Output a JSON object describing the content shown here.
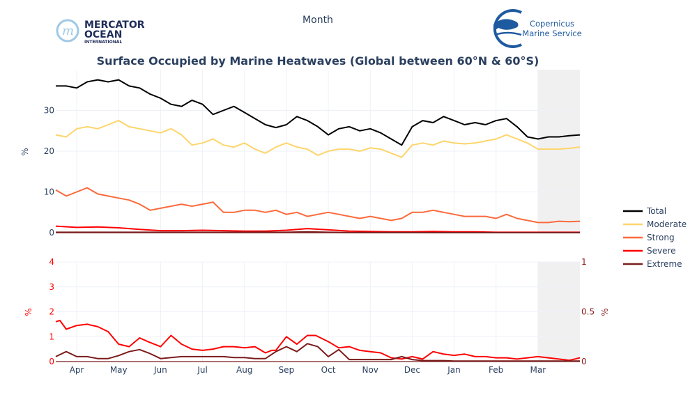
{
  "header": {
    "top_label": "Month",
    "left_logo": {
      "name": "MERCATOR",
      "line2": "OCEAN",
      "line3": "INTERNATIONAL",
      "color": "#1f2d5a",
      "mark_color": "#9fc9e6"
    },
    "right_logo": {
      "line1": "Copernicus",
      "line2": "Marine Service",
      "color": "#1e5aa0"
    }
  },
  "chart_data": {
    "type": "line",
    "title": "Surface Occupied by Marine Heatwaves (Global between 60°N & 60°S)",
    "xlabel": "",
    "x_tick_labels": [
      "Apr",
      "May",
      "Jun",
      "Jul",
      "Aug",
      "Sep",
      "Oct",
      "Nov",
      "Dec",
      "Jan",
      "Feb",
      "Mar"
    ],
    "x_range_months": [
      0,
      12.5
    ],
    "forecast_shade_start_month": 11.5,
    "grid": true,
    "legend_position": "right",
    "top_panel": {
      "ylabel": "%",
      "ylim": [
        0,
        40
      ],
      "yticks": [
        0,
        10,
        20,
        30
      ],
      "series": [
        {
          "name": "Total",
          "color": "#000000",
          "x": [
            0,
            0.25,
            0.5,
            0.75,
            1,
            1.25,
            1.5,
            1.75,
            2,
            2.25,
            2.5,
            2.75,
            3,
            3.25,
            3.5,
            3.75,
            4,
            4.25,
            4.5,
            4.75,
            5,
            5.25,
            5.5,
            5.75,
            6,
            6.25,
            6.5,
            6.75,
            7,
            7.25,
            7.5,
            7.75,
            8,
            8.25,
            8.5,
            8.75,
            9,
            9.25,
            9.5,
            9.75,
            10,
            10.25,
            10.5,
            10.75,
            11,
            11.25,
            11.5,
            11.75,
            12,
            12.25,
            12.5
          ],
          "values": [
            36,
            36,
            35.5,
            37,
            37.5,
            37,
            37.5,
            36,
            35.5,
            34,
            33,
            31.5,
            31,
            32.5,
            31.5,
            29,
            30,
            31,
            29.5,
            28,
            26.5,
            25.8,
            26.5,
            28.5,
            27.5,
            26,
            24,
            25.5,
            26,
            25,
            25.5,
            24.5,
            23,
            21.5,
            26,
            27.5,
            27,
            28.5,
            27.5,
            26.5,
            27,
            26.5,
            27.5,
            28,
            26,
            23.5,
            23,
            23.5,
            23.5,
            23.8,
            24
          ]
        },
        {
          "name": "Moderate",
          "color": "#fdd56a",
          "x": [
            0,
            0.25,
            0.5,
            0.75,
            1,
            1.25,
            1.5,
            1.75,
            2,
            2.25,
            2.5,
            2.75,
            3,
            3.25,
            3.5,
            3.75,
            4,
            4.25,
            4.5,
            4.75,
            5,
            5.25,
            5.5,
            5.75,
            6,
            6.25,
            6.5,
            6.75,
            7,
            7.25,
            7.5,
            7.75,
            8,
            8.25,
            8.5,
            8.75,
            9,
            9.25,
            9.5,
            9.75,
            10,
            10.25,
            10.5,
            10.75,
            11,
            11.25,
            11.5,
            11.75,
            12,
            12.25,
            12.5
          ],
          "values": [
            24,
            23.5,
            25.5,
            26,
            25.5,
            26.5,
            27.5,
            26,
            25.5,
            25,
            24.5,
            25.5,
            24,
            21.5,
            22,
            23,
            21.5,
            21,
            22,
            20.5,
            19.5,
            21,
            22,
            21,
            20.5,
            19,
            20,
            20.5,
            20.5,
            20,
            20.8,
            20.5,
            19.5,
            18.5,
            21.5,
            22,
            21.5,
            22.5,
            22,
            21.8,
            22,
            22.5,
            23,
            24,
            23,
            22,
            20.5,
            20.5,
            20.5,
            20.7,
            21
          ]
        },
        {
          "name": "Strong",
          "color": "#fb6a3c",
          "x": [
            0,
            0.25,
            0.5,
            0.75,
            1,
            1.25,
            1.5,
            1.75,
            2,
            2.25,
            2.5,
            2.75,
            3,
            3.25,
            3.5,
            3.75,
            4,
            4.25,
            4.5,
            4.75,
            5,
            5.25,
            5.5,
            5.75,
            6,
            6.25,
            6.5,
            6.75,
            7,
            7.25,
            7.5,
            7.75,
            8,
            8.25,
            8.5,
            8.75,
            9,
            9.25,
            9.5,
            9.75,
            10,
            10.25,
            10.5,
            10.75,
            11,
            11.25,
            11.5,
            11.75,
            12,
            12.25,
            12.5
          ],
          "values": [
            10.5,
            9,
            10,
            11,
            9.5,
            9,
            8.5,
            8,
            7,
            5.5,
            6,
            6.5,
            7,
            6.5,
            7,
            7.5,
            5,
            5,
            5.5,
            5.5,
            5,
            5.5,
            4.5,
            5,
            4,
            4.5,
            5,
            4.5,
            4,
            3.5,
            4,
            3.5,
            3,
            3.5,
            5,
            5,
            5.5,
            5,
            4.5,
            4,
            4,
            4,
            3.5,
            4.5,
            3.5,
            3,
            2.5,
            2.5,
            2.8,
            2.7,
            2.8
          ]
        },
        {
          "name": "Severe",
          "color": "#ff0000",
          "x": [
            0,
            0.5,
            1,
            1.5,
            2,
            2.5,
            3,
            3.5,
            4,
            4.5,
            5,
            5.5,
            6,
            6.5,
            7,
            7.5,
            8,
            8.5,
            9,
            9.5,
            10,
            10.5,
            11,
            11.5,
            12,
            12.5
          ],
          "values": [
            1.6,
            1.3,
            1.4,
            1.2,
            0.8,
            0.5,
            0.5,
            0.6,
            0.5,
            0.4,
            0.4,
            0.6,
            1.0,
            0.7,
            0.4,
            0.3,
            0.2,
            0.2,
            0.3,
            0.2,
            0.2,
            0.1,
            0.1,
            0.1,
            0.1,
            0.1
          ]
        },
        {
          "name": "Extreme",
          "color": "#7b1c1c",
          "x": [
            0,
            0.5,
            1,
            1.5,
            2,
            2.5,
            3,
            3.5,
            4,
            4.5,
            5,
            5.5,
            6,
            6.5,
            7,
            7.5,
            8,
            8.5,
            9,
            9.5,
            10,
            10.5,
            11,
            11.5,
            12,
            12.5
          ],
          "values": [
            0.1,
            0.1,
            0.1,
            0.1,
            0.1,
            0.1,
            0.1,
            0.1,
            0.1,
            0.1,
            0.1,
            0.1,
            0.2,
            0.1,
            0.05,
            0.05,
            0.05,
            0.03,
            0.02,
            0.02,
            0.02,
            0.01,
            0.01,
            0.01,
            0.01,
            0.01
          ]
        }
      ]
    },
    "bottom_panel": {
      "ylabel_left": "%",
      "ylabel_right": "%",
      "ylim_left": [
        0,
        4
      ],
      "yticks_left": [
        0,
        1,
        2,
        3,
        4
      ],
      "ylim_right": [
        0,
        1
      ],
      "yticks_right": [
        "0",
        "0.5",
        "1"
      ],
      "series": [
        {
          "name": "Severe",
          "color": "#ff0000",
          "axis": "left",
          "x": [
            0,
            0.1,
            0.25,
            0.5,
            0.75,
            1,
            1.25,
            1.5,
            1.75,
            2,
            2.2,
            2.5,
            2.75,
            3,
            3.25,
            3.5,
            3.75,
            4,
            4.25,
            4.5,
            4.75,
            5,
            5.15,
            5.25,
            5.5,
            5.75,
            6,
            6.2,
            6.5,
            6.75,
            7,
            7.25,
            7.5,
            7.75,
            8,
            8.25,
            8.5,
            8.75,
            9,
            9.25,
            9.5,
            9.75,
            10,
            10.25,
            10.5,
            10.75,
            11,
            11.25,
            11.5,
            11.75,
            12,
            12.25,
            12.5
          ],
          "values": [
            1.6,
            1.65,
            1.3,
            1.45,
            1.5,
            1.4,
            1.2,
            0.7,
            0.6,
            0.95,
            0.8,
            0.6,
            1.05,
            0.7,
            0.5,
            0.45,
            0.5,
            0.6,
            0.6,
            0.55,
            0.6,
            0.35,
            0.45,
            0.45,
            1.0,
            0.7,
            1.05,
            1.05,
            0.8,
            0.55,
            0.6,
            0.45,
            0.4,
            0.35,
            0.15,
            0.1,
            0.2,
            0.1,
            0.4,
            0.3,
            0.25,
            0.3,
            0.2,
            0.2,
            0.15,
            0.15,
            0.1,
            0.15,
            0.2,
            0.15,
            0.1,
            0.05,
            0.15
          ]
        },
        {
          "name": "Extreme",
          "color": "#7b1c1c",
          "axis": "right",
          "x": [
            0,
            0.25,
            0.5,
            0.75,
            1,
            1.25,
            1.5,
            1.75,
            2,
            2.25,
            2.5,
            2.75,
            3,
            3.25,
            3.5,
            3.75,
            4,
            4.25,
            4.5,
            4.75,
            5,
            5.25,
            5.5,
            5.75,
            6,
            6.25,
            6.5,
            6.75,
            7,
            7.25,
            7.5,
            7.75,
            8,
            8.25,
            8.5,
            8.75,
            9,
            9.25,
            9.5,
            9.75,
            10,
            10.25,
            10.5,
            10.75,
            11,
            11.25,
            11.5,
            11.75,
            12,
            12.25,
            12.5
          ],
          "values": [
            0.05,
            0.1,
            0.05,
            0.05,
            0.03,
            0.03,
            0.06,
            0.1,
            0.12,
            0.08,
            0.03,
            0.04,
            0.05,
            0.05,
            0.05,
            0.05,
            0.05,
            0.04,
            0.04,
            0.03,
            0.03,
            0.1,
            0.15,
            0.1,
            0.18,
            0.15,
            0.05,
            0.12,
            0.02,
            0.02,
            0.02,
            0.02,
            0.02,
            0.05,
            0.02,
            0.01,
            0.01,
            0.01,
            0.005,
            0.005,
            0.005,
            0.005,
            0.005,
            0.005,
            0.005,
            0.005,
            0.005,
            0.005,
            0.005,
            0.005,
            0.005
          ]
        }
      ]
    },
    "legend": [
      {
        "name": "Total",
        "color": "#000000"
      },
      {
        "name": "Moderate",
        "color": "#fdd56a"
      },
      {
        "name": "Strong",
        "color": "#fb6a3c"
      },
      {
        "name": "Severe",
        "color": "#ff0000"
      },
      {
        "name": "Extreme",
        "color": "#7b1c1c"
      }
    ]
  }
}
